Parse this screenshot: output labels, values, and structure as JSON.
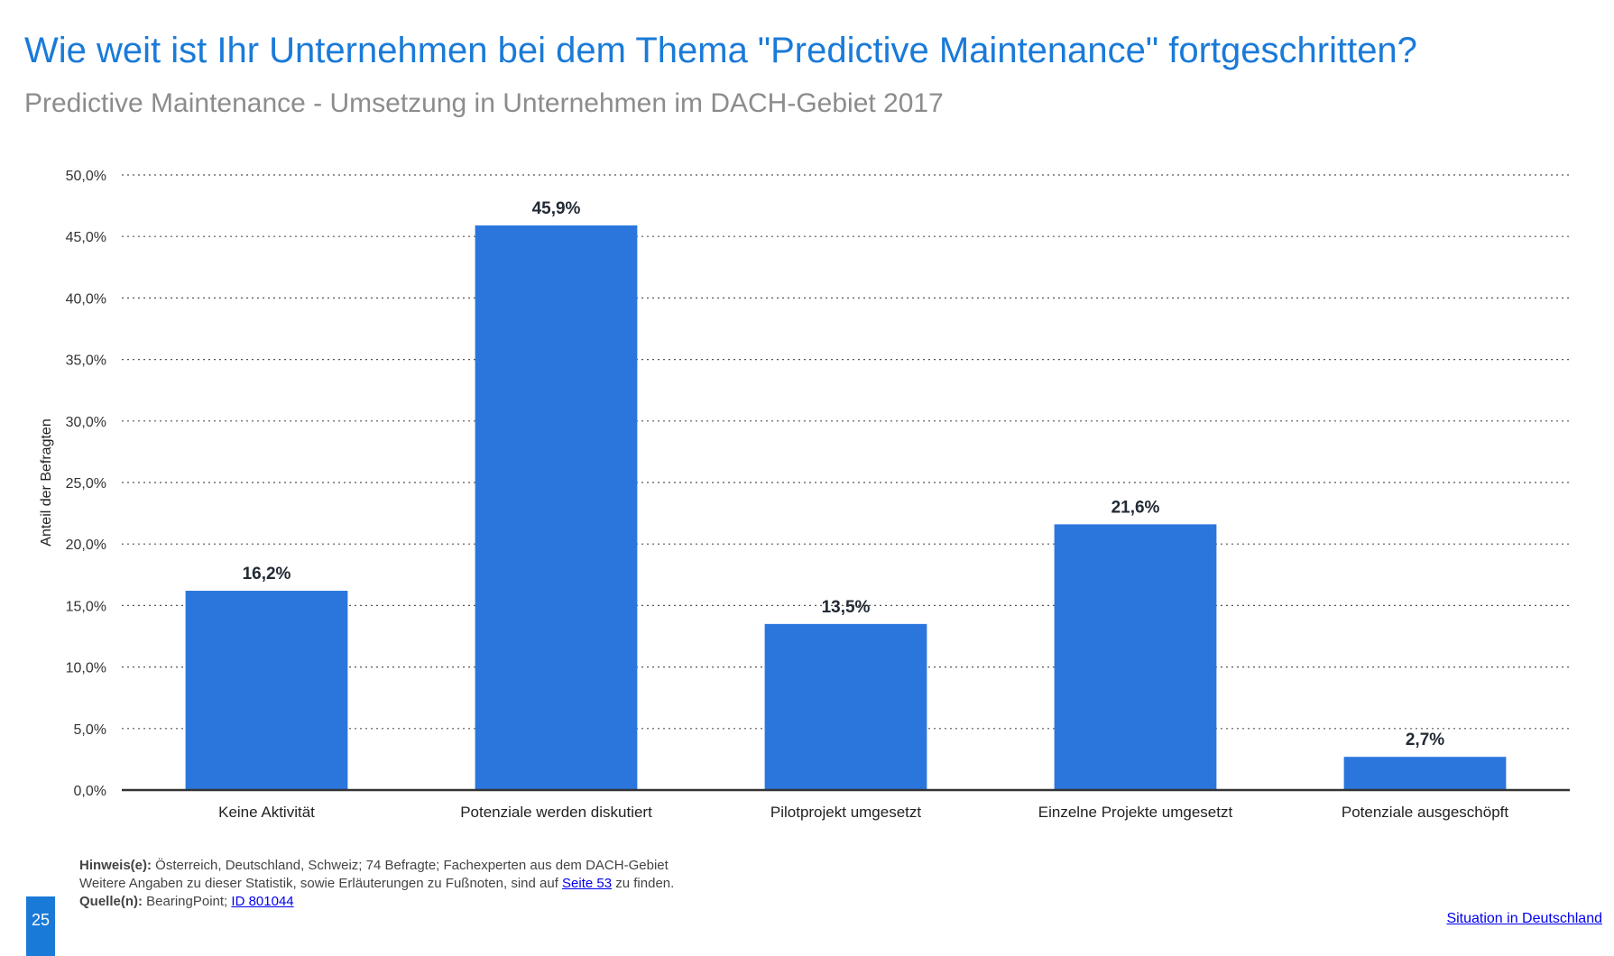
{
  "header": {
    "title": "Wie weit ist Ihr Unternehmen bei dem Thema \"Predictive Maintenance\" fortgeschritten?",
    "subtitle": "Predictive Maintenance - Umsetzung in Unternehmen im DACH-Gebiet 2017"
  },
  "chart_data": {
    "type": "bar",
    "categories": [
      "Keine Aktivität",
      "Potenziale werden diskutiert",
      "Pilotprojekt umgesetzt",
      "Einzelne Projekte umgesetzt",
      "Potenziale ausgeschöpft"
    ],
    "values": [
      16.2,
      45.9,
      13.5,
      21.6,
      2.7
    ],
    "value_labels": [
      "16,2%",
      "45,9%",
      "13,5%",
      "21,6%",
      "2,7%"
    ],
    "ylabel": "Anteil der Befragten",
    "ylim": [
      0,
      50
    ],
    "yticks": [
      0,
      5,
      10,
      15,
      20,
      25,
      30,
      35,
      40,
      45,
      50
    ],
    "ytick_labels": [
      "0,0%",
      "5,0%",
      "10,0%",
      "15,0%",
      "20,0%",
      "25,0%",
      "30,0%",
      "35,0%",
      "40,0%",
      "45,0%",
      "50,0%"
    ],
    "grid": true,
    "bar_color": "#2a76dd"
  },
  "footer": {
    "hint_label": "Hinweis(e):",
    "hint_text": " Österreich, Deutschland, Schweiz; 74 Befragte; Fachexperten aus dem DACH-Gebiet",
    "more_info_pre": "Weitere Angaben zu dieser Statistik, sowie Erläuterungen zu Fußnoten, sind auf ",
    "more_info_link": "Seite 53",
    "more_info_post": " zu finden.",
    "source_label": "Quelle(n):",
    "source_text": " BearingPoint; ",
    "source_link": "ID 801044",
    "page_number": "25",
    "section_link": "Situation in Deutschland"
  }
}
